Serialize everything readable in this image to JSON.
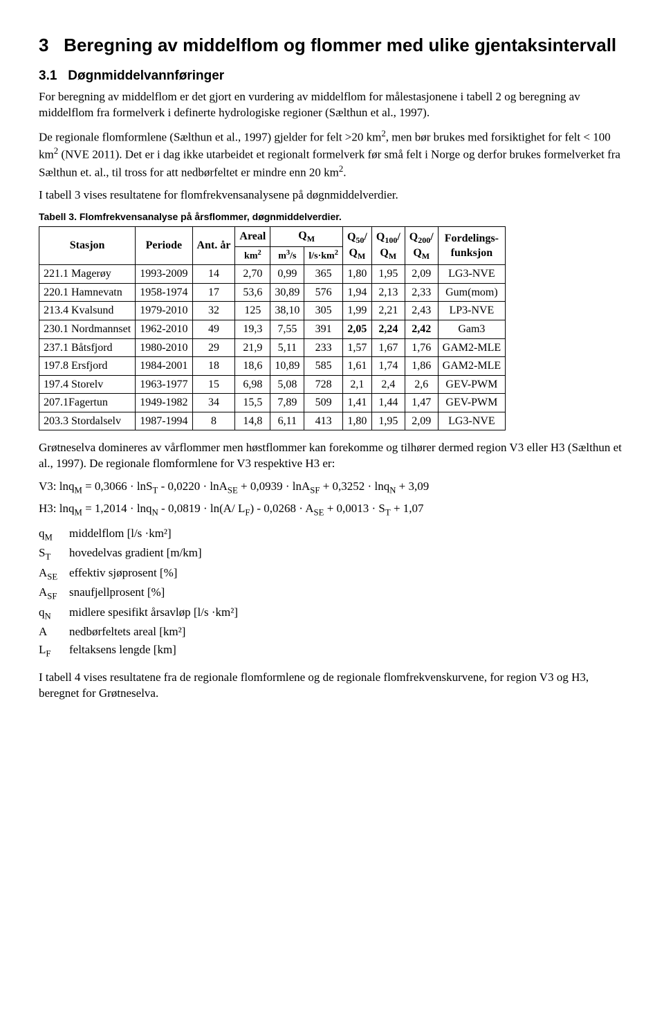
{
  "section_number": "3",
  "section_title": "Beregning av middelflom og flommer med ulike gjentaksintervall",
  "sub_number": "3.1",
  "sub_title": "Døgnmiddelvannføringer",
  "para1": "For beregning av middelflom er det gjort en vurdering av middelflom for målestasjonene i tabell 2 og beregning av middelflom fra formelverk i definerte hydrologiske regioner (Sælthun et al., 1997).",
  "para2_a": "De regionale flomformlene (Sælthun et al., 1997) gjelder for felt >20 km",
  "para2_b": ", men bør brukes med forsiktighet for felt < 100 km",
  "para2_c": " (NVE 2011). Det er i dag ikke utarbeidet et regionalt formelverk før små felt i Norge og derfor brukes formelverket fra Sælthun et. al., til tross for att nedbørfeltet er mindre enn 20 km",
  "para2_d": ".",
  "para3": "I tabell 3 vises resultatene for flomfrekvensanalysene på døgnmiddelverdier.",
  "table3_caption": "Tabell 3. Flomfrekvensanalyse på årsflommer, døgnmiddelverdier.",
  "table3_headers": {
    "stasjon": "Stasjon",
    "periode": "Periode",
    "antar": "Ant. år",
    "areal": "Areal",
    "areal_unit": "km²",
    "qm": "Qᴍ",
    "qm_sub1": "m³/s",
    "qm_sub2": "l/s·km²",
    "q50": "Q₅₀/ Qᴍ",
    "q100": "Q₁₀₀/ Qᴍ",
    "q200": "Q₂₀₀/ Qᴍ",
    "fordel": "Fordelings-funksjon"
  },
  "table3_rows": [
    {
      "st": "221.1 Magerøy",
      "per": "1993-2009",
      "ar": "14",
      "areal": "2,70",
      "m3s": "0,99",
      "lskm2": "365",
      "q50": "1,80",
      "q100": "1,95",
      "q200": "2,09",
      "ford": "LG3-NVE",
      "bold": false
    },
    {
      "st": "220.1 Hamnevatn",
      "per": "1958-1974",
      "ar": "17",
      "areal": "53,6",
      "m3s": "30,89",
      "lskm2": "576",
      "q50": "1,94",
      "q100": "2,13",
      "q200": "2,33",
      "ford": "Gum(mom)",
      "bold": false
    },
    {
      "st": "213.4 Kvalsund",
      "per": "1979-2010",
      "ar": "32",
      "areal": "125",
      "m3s": "38,10",
      "lskm2": "305",
      "q50": "1,99",
      "q100": "2,21",
      "q200": "2,43",
      "ford": "LP3-NVE",
      "bold": false
    },
    {
      "st": "230.1 Nordmannset",
      "per": "1962-2010",
      "ar": "49",
      "areal": "19,3",
      "m3s": "7,55",
      "lskm2": "391",
      "q50": "2,05",
      "q100": "2,24",
      "q200": "2,42",
      "ford": "Gam3",
      "bold": true
    },
    {
      "st": "237.1 Båtsfjord",
      "per": "1980-2010",
      "ar": "29",
      "areal": "21,9",
      "m3s": "5,11",
      "lskm2": "233",
      "q50": "1,57",
      "q100": "1,67",
      "q200": "1,76",
      "ford": "GAM2-MLE",
      "bold": false
    },
    {
      "st": "197.8 Ersfjord",
      "per": "1984-2001",
      "ar": "18",
      "areal": "18,6",
      "m3s": "10,89",
      "lskm2": "585",
      "q50": "1,61",
      "q100": "1,74",
      "q200": "1,86",
      "ford": "GAM2-MLE",
      "bold": false
    },
    {
      "st": "197.4 Storelv",
      "per": "1963-1977",
      "ar": "15",
      "areal": "6,98",
      "m3s": "5,08",
      "lskm2": "728",
      "q50": "2,1",
      "q100": "2,4",
      "q200": "2,6",
      "ford": "GEV-PWM",
      "bold": false
    },
    {
      "st": "207.1Fagertun",
      "per": "1949-1982",
      "ar": "34",
      "areal": "15,5",
      "m3s": "7,89",
      "lskm2": "509",
      "q50": "1,41",
      "q100": "1,44",
      "q200": "1,47",
      "ford": "GEV-PWM",
      "bold": false
    },
    {
      "st": "203.3 Stordalselv",
      "per": "1987-1994",
      "ar": "8",
      "areal": "14,8",
      "m3s": "6,11",
      "lskm2": "413",
      "q50": "1,80",
      "q100": "1,95",
      "q200": "2,09",
      "ford": "LG3-NVE",
      "bold": false
    }
  ],
  "para4": "Grøtneselva domineres av vårflommer men høstflommer kan forekomme og tilhører dermed region V3 eller H3 (Sælthun et al., 1997). De regionale flomformlene for V3 respektive H3 er:",
  "formula_v3_label": "V3: lnqᴍ = 0,3066 · lnSᴛ - 0,0220 · lnAꜱᴇ + 0,0939 · lnAꜱꜰ + 0,3252 · lnqɴ + 3,09",
  "formula_h3_label": "H3: lnqᴍ = 1,2014 · lnqɴ - 0,0819 · ln(A/ Lꜰ) - 0,0268 · Aꜱᴇ + 0,0013 · Sᴛ + 1,07",
  "defs": [
    {
      "sym": "qᴍ",
      "txt": "middelflom [l/s ·km²]"
    },
    {
      "sym": "Sᴛ",
      "txt": "hovedelvas gradient [m/km]"
    },
    {
      "sym": "Aꜱᴇ",
      "txt": "effektiv sjøprosent [%]"
    },
    {
      "sym": "Aꜱꜰ",
      "txt": "snaufjellprosent [%]"
    },
    {
      "sym": "qɴ",
      "txt": "midlere spesifikt årsavløp [l/s ·km²]"
    },
    {
      "sym": "A",
      "txt": "nedbørfeltets areal [km²]"
    },
    {
      "sym": "Lꜰ",
      "txt": "feltaksens lengde [km]"
    }
  ],
  "para5": "I tabell 4 vises resultatene fra de regionale flomformlene og de regionale flomfrekvenskurvene, for region V3 og H3, beregnet for Grøtneselva."
}
